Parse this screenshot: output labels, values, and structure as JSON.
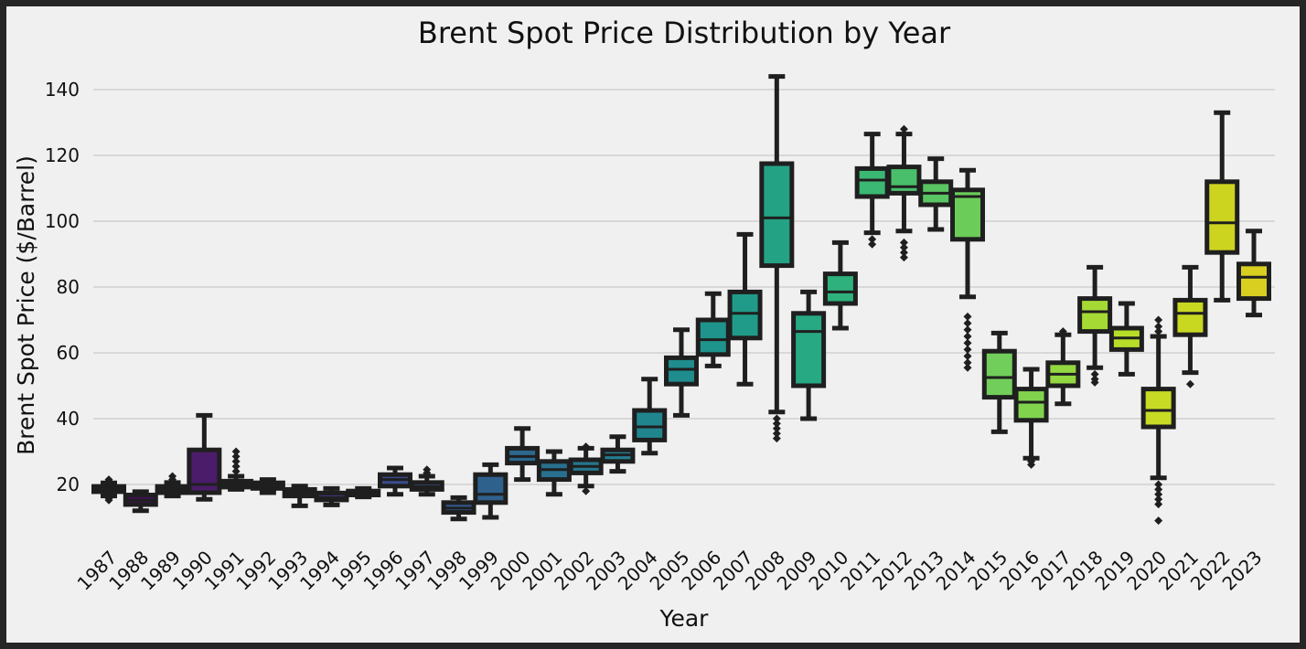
{
  "chart_data": {
    "type": "box",
    "title": "Brent Spot Price Distribution by Year",
    "xlabel": "Year",
    "ylabel": "Brent Spot Price ($/Barrel)",
    "ylim": [
      0,
      150
    ],
    "y_ticks": [
      20,
      40,
      60,
      80,
      100,
      120,
      140
    ],
    "grid": "horizontal",
    "palette": "viridis",
    "categories": [
      "1987",
      "1988",
      "1989",
      "1990",
      "1991",
      "1992",
      "1993",
      "1994",
      "1995",
      "1996",
      "1997",
      "1998",
      "1999",
      "2000",
      "2001",
      "2002",
      "2003",
      "2004",
      "2005",
      "2006",
      "2007",
      "2008",
      "2009",
      "2010",
      "2011",
      "2012",
      "2013",
      "2014",
      "2015",
      "2016",
      "2017",
      "2018",
      "2019",
      "2020",
      "2021",
      "2022",
      "2023"
    ],
    "boxes": [
      {
        "year": "1987",
        "color": "#3b0f56",
        "whislo": 16.5,
        "q1": 17.8,
        "med": 18.7,
        "q3": 19.4,
        "whishi": 20.5,
        "outliers": [
          15.2,
          15.8,
          21.0,
          21.5
        ]
      },
      {
        "year": "1988",
        "color": "#44105a",
        "whislo": 12.0,
        "q1": 13.9,
        "med": 15.2,
        "q3": 16.8,
        "whishi": 17.8,
        "outliers": []
      },
      {
        "year": "1989",
        "color": "#46125f",
        "whislo": 16.5,
        "q1": 17.5,
        "med": 18.4,
        "q3": 19.4,
        "whishi": 20.6,
        "outliers": [
          21.5,
          22.5
        ]
      },
      {
        "year": "1990",
        "color": "#4b1c6a",
        "whislo": 15.5,
        "q1": 17.5,
        "med": 20.0,
        "q3": 30.5,
        "whishi": 41.0,
        "outliers": []
      },
      {
        "year": "1991",
        "color": "#472372",
        "whislo": 18.5,
        "q1": 19.2,
        "med": 20.0,
        "q3": 21.0,
        "whishi": 22.5,
        "outliers": [
          24.0,
          25.5,
          27.0,
          28.5,
          30.0
        ]
      },
      {
        "year": "1992",
        "color": "#452a78",
        "whislo": 17.5,
        "q1": 18.8,
        "med": 19.5,
        "q3": 20.5,
        "whishi": 21.5,
        "outliers": []
      },
      {
        "year": "1993",
        "color": "#43317d",
        "whislo": 13.5,
        "q1": 16.5,
        "med": 17.5,
        "q3": 18.5,
        "whishi": 19.5,
        "outliers": []
      },
      {
        "year": "1994",
        "color": "#403881",
        "whislo": 13.8,
        "q1": 15.3,
        "med": 16.0,
        "q3": 17.4,
        "whishi": 18.8,
        "outliers": []
      },
      {
        "year": "1995",
        "color": "#3d4185",
        "whislo": 16.2,
        "q1": 16.8,
        "med": 17.2,
        "q3": 18.0,
        "whishi": 18.8,
        "outliers": []
      },
      {
        "year": "1996",
        "color": "#3a4a8a",
        "whislo": 17.0,
        "q1": 19.5,
        "med": 21.5,
        "q3": 23.0,
        "whishi": 25.0,
        "outliers": []
      },
      {
        "year": "1997",
        "color": "#36528b",
        "whislo": 17.0,
        "q1": 18.5,
        "med": 19.3,
        "q3": 20.6,
        "whishi": 22.5,
        "outliers": [
          23.5,
          24.5
        ]
      },
      {
        "year": "1998",
        "color": "#32598c",
        "whislo": 9.5,
        "q1": 11.5,
        "med": 12.8,
        "q3": 14.5,
        "whishi": 16.0,
        "outliers": []
      },
      {
        "year": "1999",
        "color": "#2f618d",
        "whislo": 10.0,
        "q1": 14.5,
        "med": 17.0,
        "q3": 23.0,
        "whishi": 26.0,
        "outliers": []
      },
      {
        "year": "2000",
        "color": "#2c688e",
        "whislo": 21.5,
        "q1": 26.5,
        "med": 28.5,
        "q3": 31.0,
        "whishi": 37.0,
        "outliers": []
      },
      {
        "year": "2001",
        "color": "#29708e",
        "whislo": 17.0,
        "q1": 21.5,
        "med": 24.5,
        "q3": 27.0,
        "whishi": 30.0,
        "outliers": []
      },
      {
        "year": "2002",
        "color": "#26778e",
        "whislo": 19.5,
        "q1": 23.5,
        "med": 25.5,
        "q3": 27.5,
        "whishi": 31.0,
        "outliers": [
          18.0,
          31.5
        ]
      },
      {
        "year": "2003",
        "color": "#237e8e",
        "whislo": 24.0,
        "q1": 27.0,
        "med": 29.0,
        "q3": 30.5,
        "whishi": 34.5,
        "outliers": []
      },
      {
        "year": "2004",
        "color": "#21858e",
        "whislo": 29.5,
        "q1": 33.5,
        "med": 37.5,
        "q3": 42.5,
        "whishi": 52.0,
        "outliers": []
      },
      {
        "year": "2005",
        "color": "#1f8c8d",
        "whislo": 41.0,
        "q1": 50.5,
        "med": 55.0,
        "q3": 58.5,
        "whishi": 67.0,
        "outliers": []
      },
      {
        "year": "2006",
        "color": "#1f948c",
        "whislo": 56.0,
        "q1": 59.5,
        "med": 64.0,
        "q3": 70.0,
        "whishi": 78.0,
        "outliers": []
      },
      {
        "year": "2007",
        "color": "#209b89",
        "whislo": 50.5,
        "q1": 64.5,
        "med": 72.0,
        "q3": 78.5,
        "whishi": 96.0,
        "outliers": []
      },
      {
        "year": "2008",
        "color": "#23a284",
        "whislo": 42.0,
        "q1": 86.5,
        "med": 101.0,
        "q3": 117.5,
        "whishi": 144.0,
        "outliers": [
          34.0,
          35.5,
          37.0,
          38.5,
          40.0
        ]
      },
      {
        "year": "2009",
        "color": "#27a983",
        "whislo": 40.0,
        "q1": 50.0,
        "med": 66.5,
        "q3": 72.0,
        "whishi": 78.5,
        "outliers": []
      },
      {
        "year": "2010",
        "color": "#2eb17c",
        "whislo": 67.5,
        "q1": 75.0,
        "med": 78.5,
        "q3": 84.0,
        "whishi": 93.5,
        "outliers": []
      },
      {
        "year": "2011",
        "color": "#3bb873",
        "whislo": 96.5,
        "q1": 107.5,
        "med": 112.5,
        "q3": 116.0,
        "whishi": 126.5,
        "outliers": [
          93.0,
          94.5
        ]
      },
      {
        "year": "2012",
        "color": "#4abf6b",
        "whislo": 97.0,
        "q1": 108.5,
        "med": 110.5,
        "q3": 116.5,
        "whishi": 126.5,
        "outliers": [
          89.0,
          90.5,
          92.0,
          93.5,
          128.0
        ]
      },
      {
        "year": "2013",
        "color": "#5ac563",
        "whislo": 97.5,
        "q1": 105.0,
        "med": 108.5,
        "q3": 112.0,
        "whishi": 119.0,
        "outliers": []
      },
      {
        "year": "2014",
        "color": "#6bcc5a",
        "whislo": 77.0,
        "q1": 94.5,
        "med": 107.5,
        "q3": 109.5,
        "whishi": 115.5,
        "outliers": [
          55.5,
          57.0,
          59.0,
          61.0,
          63.0,
          65.0,
          67.0,
          69.0,
          71.0
        ]
      },
      {
        "year": "2015",
        "color": "#72ce5a",
        "whislo": 36.0,
        "q1": 46.5,
        "med": 52.5,
        "q3": 60.5,
        "whishi": 66.0,
        "outliers": []
      },
      {
        "year": "2016",
        "color": "#81d34d",
        "whislo": 28.0,
        "q1": 39.5,
        "med": 45.0,
        "q3": 49.0,
        "whishi": 55.0,
        "outliers": [
          26.0,
          27.0
        ]
      },
      {
        "year": "2017",
        "color": "#93d741",
        "whislo": 44.5,
        "q1": 50.0,
        "med": 53.5,
        "q3": 57.0,
        "whishi": 65.5,
        "outliers": [
          66.5
        ]
      },
      {
        "year": "2018",
        "color": "#a5da34",
        "whislo": 55.5,
        "q1": 66.5,
        "med": 72.5,
        "q3": 76.5,
        "whishi": 86.0,
        "outliers": [
          51.0,
          52.0,
          53.5
        ]
      },
      {
        "year": "2019",
        "color": "#b8dd29",
        "whislo": 53.5,
        "q1": 61.0,
        "med": 64.5,
        "q3": 67.5,
        "whishi": 75.0,
        "outliers": []
      },
      {
        "year": "2020",
        "color": "#c7db24",
        "whislo": 22.0,
        "q1": 37.5,
        "med": 42.5,
        "q3": 49.0,
        "whishi": 65.0,
        "outliers": [
          9.0,
          14.0,
          15.5,
          17.0,
          18.5,
          20.0,
          66.5,
          68.0,
          70.0
        ]
      },
      {
        "year": "2021",
        "color": "#c8d821",
        "whislo": 54.0,
        "q1": 65.5,
        "med": 72.0,
        "q3": 76.0,
        "whishi": 86.0,
        "outliers": [
          50.5
        ]
      },
      {
        "year": "2022",
        "color": "#ccd420",
        "whislo": 76.0,
        "q1": 90.5,
        "med": 99.5,
        "q3": 112.0,
        "whishi": 133.0,
        "outliers": []
      },
      {
        "year": "2023",
        "color": "#d8cf21",
        "whislo": 71.5,
        "q1": 76.5,
        "med": 83.0,
        "q3": 87.0,
        "whishi": 97.0,
        "outliers": []
      }
    ]
  }
}
